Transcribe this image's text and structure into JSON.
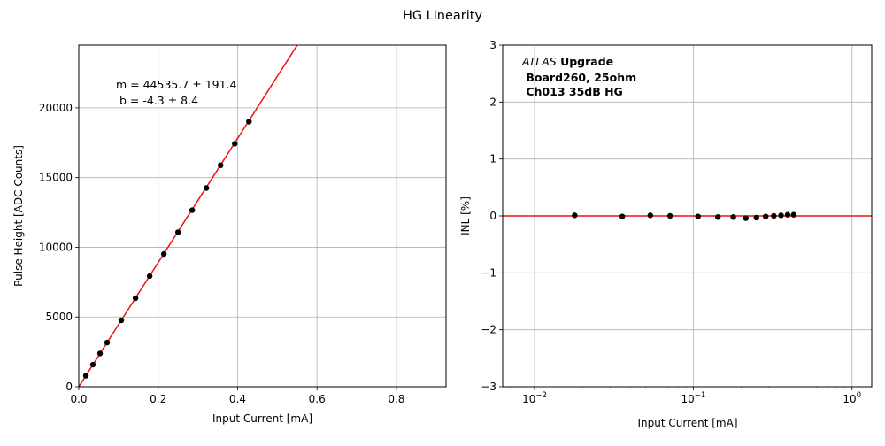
{
  "figure_title": "HG Linearity",
  "chart_data": [
    {
      "type": "scatter",
      "xlabel": "Input Current [mA]",
      "ylabel": "Pulse Height [ADC Counts]",
      "xlim": [
        0,
        0.925
      ],
      "ylim": [
        0,
        24500
      ],
      "x_scale": "linear",
      "xticks": [
        0,
        0.2,
        0.4,
        0.6,
        0.8
      ],
      "xtick_labels": [
        "0.0",
        "0.2",
        "0.4",
        "0.6",
        "0.8"
      ],
      "yticks": [
        0,
        5000,
        10000,
        15000,
        20000
      ],
      "ytick_labels": [
        "0",
        "5000",
        "10000",
        "15000",
        "20000"
      ],
      "grid": true,
      "annotation": [
        "m = 44535.7 ± 191.4",
        " b = -4.3 ± 8.4"
      ],
      "fit": {
        "slope": 44535.7,
        "intercept": -4.3,
        "color": "#ee1111"
      },
      "points_color": "#000000",
      "series": [
        {
          "x": [
            0.0179,
            0.0357,
            0.0536,
            0.0714,
            0.1071,
            0.1429,
            0.1786,
            0.2143,
            0.25,
            0.2857,
            0.3214,
            0.3571,
            0.3929,
            0.4286
          ],
          "y": [
            790,
            1585,
            2385,
            3170,
            4760,
            6350,
            7935,
            9520,
            11080,
            12660,
            14250,
            15880,
            17430,
            19010
          ]
        }
      ]
    },
    {
      "type": "scatter",
      "xlabel": "Input Current [mA]",
      "ylabel": "INL [%]",
      "x_scale": "log",
      "xlim": [
        0.0063,
        1.33
      ],
      "ylim": [
        -3,
        3
      ],
      "xticks": [
        0.01,
        0.1,
        1
      ],
      "xtick_labels": [
        "10",
        "10",
        "10"
      ],
      "xtick_exponents": [
        "−2",
        "−1",
        "0"
      ],
      "yticks": [
        -3,
        -2,
        -1,
        0,
        1,
        2,
        3
      ],
      "ytick_labels": [
        "−3",
        "−2",
        "−1",
        "0",
        "1",
        "2",
        "3"
      ],
      "grid": true,
      "reference_line": {
        "y": 0,
        "color": "#ee1111"
      },
      "annotation": {
        "line1_italic": "ATLAS",
        "line1_bold": " Upgrade",
        "line2": " Board260, 25ohm",
        "line3": " Ch013 35dB HG"
      },
      "points_color": "#000000",
      "series": [
        {
          "x": [
            0.0179,
            0.0357,
            0.0536,
            0.0714,
            0.1071,
            0.1429,
            0.1786,
            0.2143,
            0.25,
            0.2857,
            0.3214,
            0.3571,
            0.3929,
            0.4286
          ],
          "y": [
            0.01,
            -0.01,
            0.01,
            0.0,
            -0.01,
            -0.02,
            -0.02,
            -0.04,
            -0.03,
            -0.01,
            0.0,
            0.01,
            0.02,
            0.02
          ]
        }
      ]
    }
  ]
}
